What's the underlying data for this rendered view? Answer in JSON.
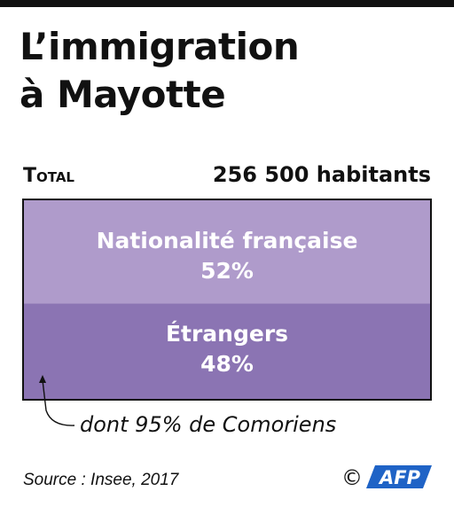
{
  "title_line1": "L’immigration",
  "title_line2": "à Mayotte",
  "total_label": "Total",
  "total_value": "256 500 habitants",
  "annotation": "dont 95% de Comoriens",
  "source": "Source : Insee, 2017",
  "credit": {
    "copyright": "©",
    "logo_text": "AFP"
  },
  "colors": {
    "nationalite": "#af9bcb",
    "etrangers": "#8b74b3",
    "border": "#111111",
    "text_light": "#ffffff",
    "logo": "#1f63c6"
  },
  "chart_data": {
    "type": "stacked-bar",
    "total": "256 500 habitants",
    "categories": [
      "Nationalité française",
      "Étrangers"
    ],
    "values": [
      52,
      48
    ],
    "value_labels": [
      "52%",
      "48%"
    ],
    "unit": "%",
    "annotations": [
      "dont 95% de Comoriens"
    ]
  }
}
